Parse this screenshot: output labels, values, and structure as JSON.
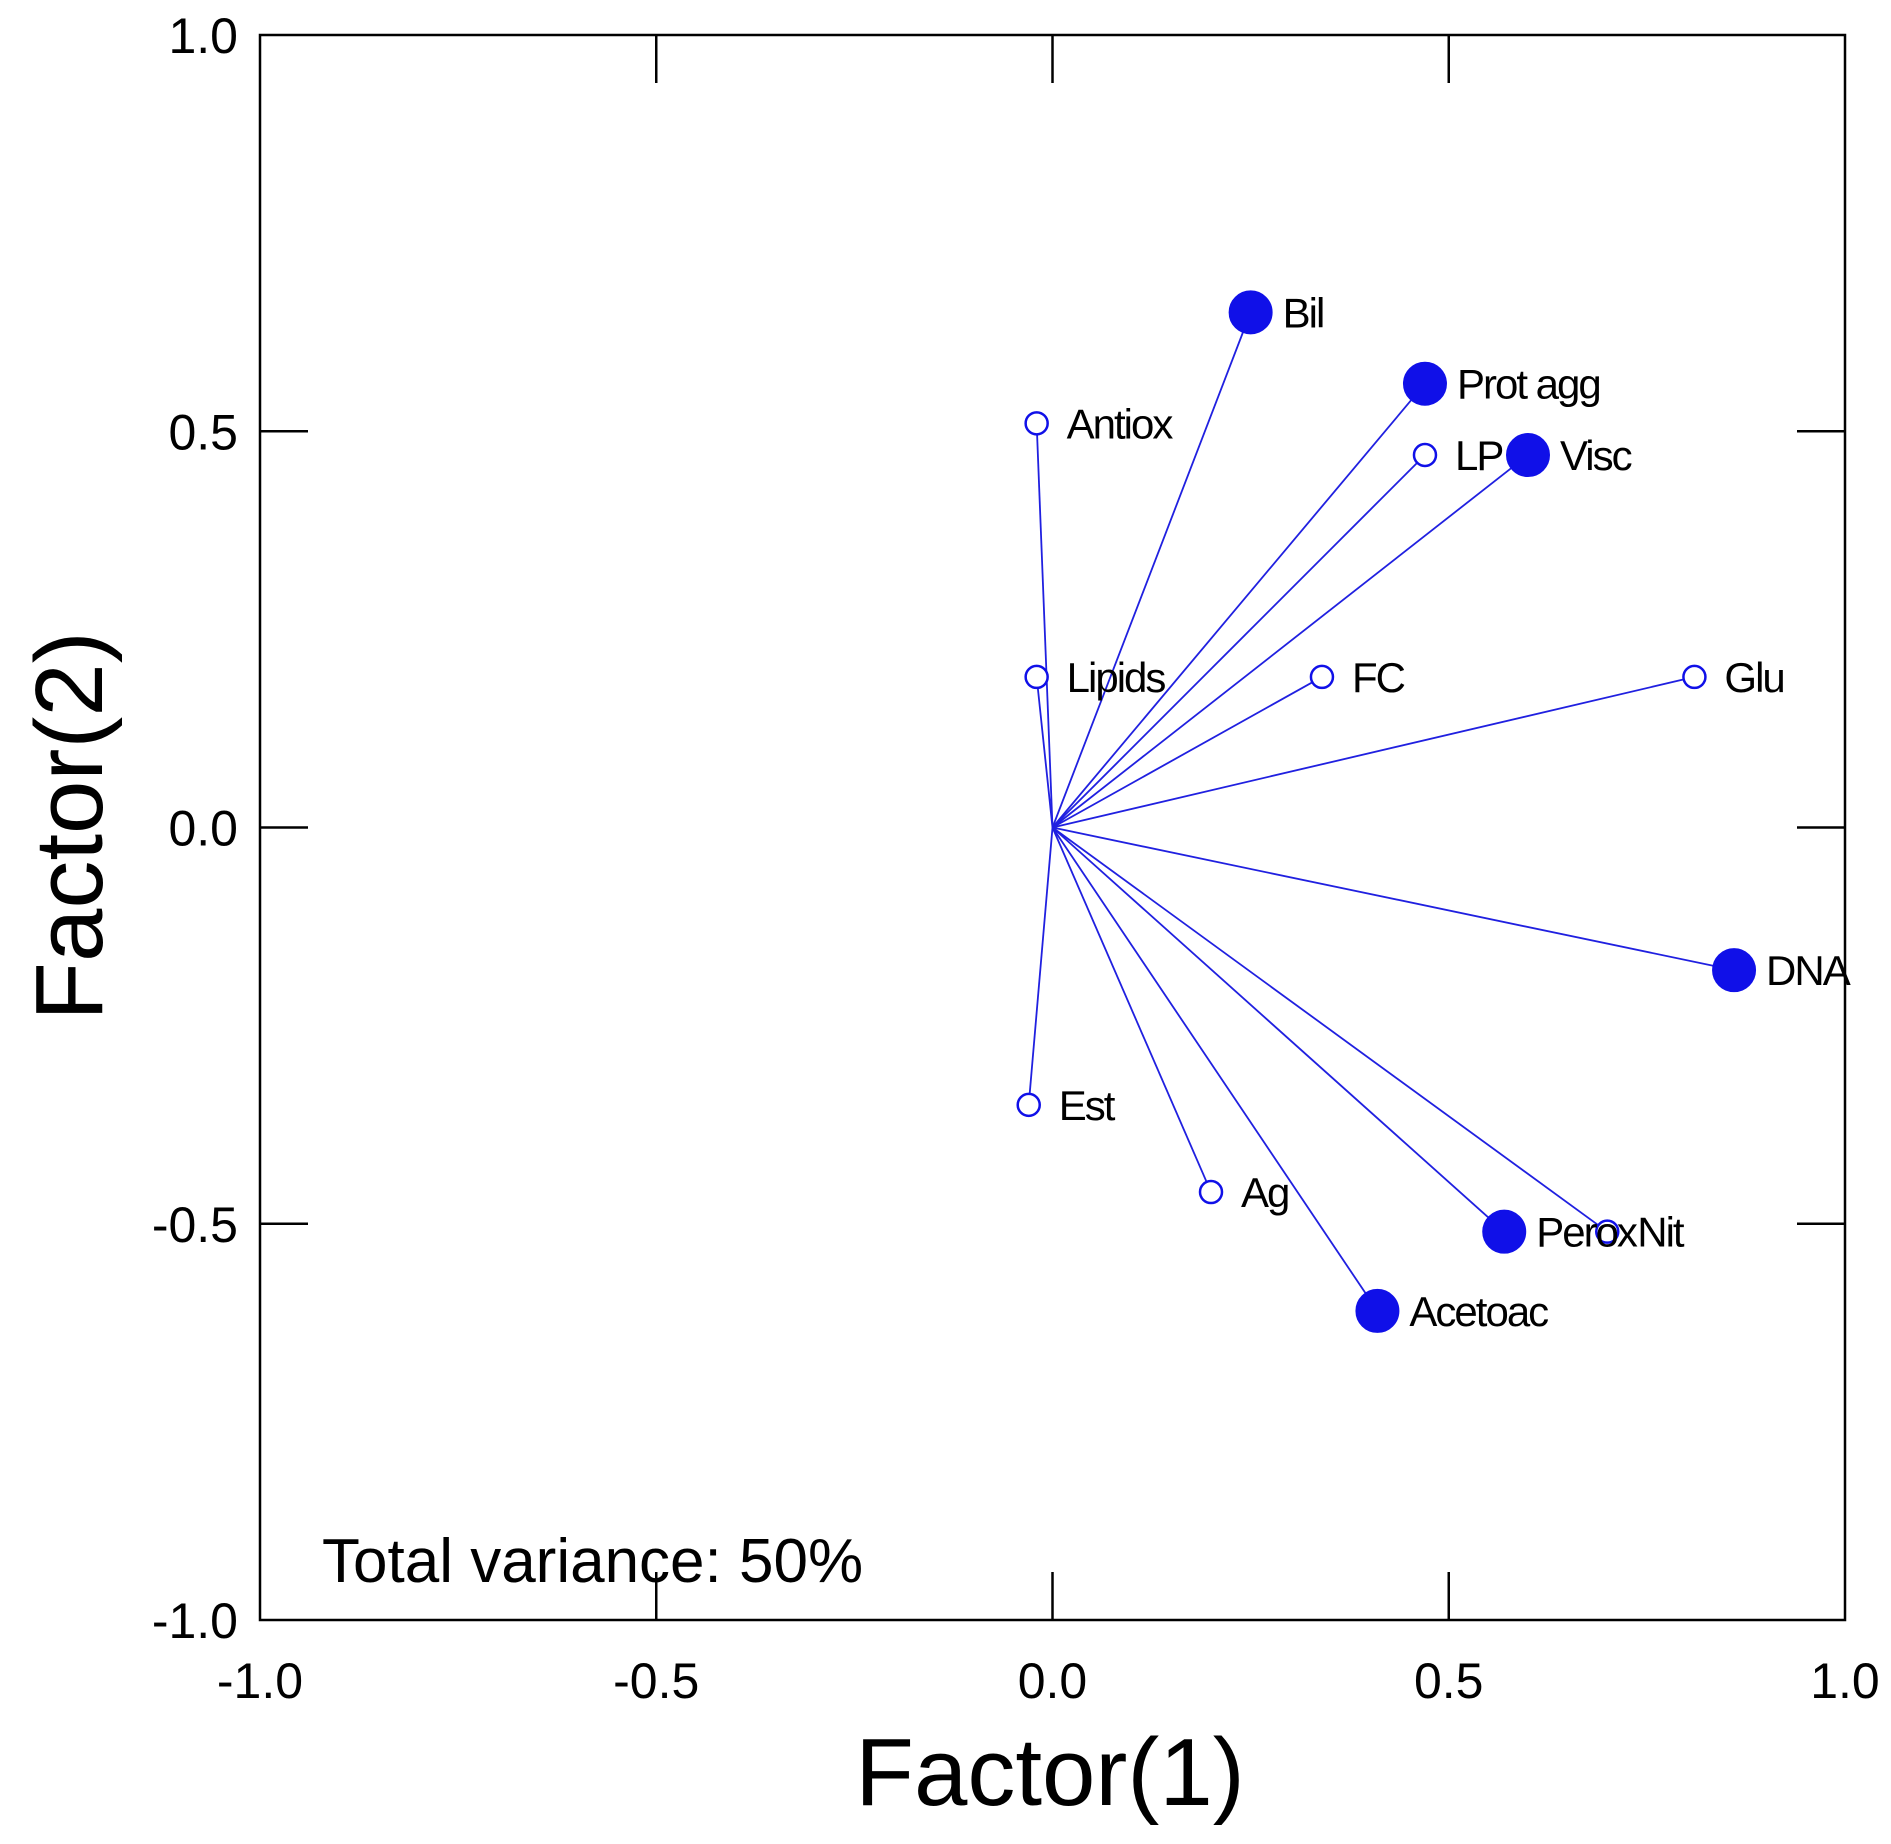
{
  "chart_data": {
    "type": "scatter",
    "subtype": "loading-vector-plot",
    "title": "",
    "xlabel": "Factor(1)",
    "ylabel": "Factor(2)",
    "xlim": [
      -1.0,
      1.0
    ],
    "ylim": [
      -1.0,
      1.0
    ],
    "xticks": [
      "-1.0",
      "-0.5",
      "0.0",
      "0.5",
      "1.0"
    ],
    "yticks": [
      "1.0",
      "0.5",
      "0.0",
      "-0.5",
      "-1.0"
    ],
    "grid": false,
    "annotation": "Total variance: 50%",
    "colors": {
      "vector": "#2020e0",
      "marker": "#1010e8",
      "axis": "#000000"
    },
    "points": [
      {
        "label": "Bil",
        "x": 0.25,
        "y": 0.65,
        "marker": "filled"
      },
      {
        "label": "Prot agg",
        "x": 0.47,
        "y": 0.56,
        "marker": "filled"
      },
      {
        "label": "Antiox",
        "x": -0.02,
        "y": 0.51,
        "marker": "open"
      },
      {
        "label": "LP",
        "x": 0.47,
        "y": 0.47,
        "marker": "open"
      },
      {
        "label": "Visc",
        "x": 0.6,
        "y": 0.47,
        "marker": "filled"
      },
      {
        "label": "Lipids",
        "x": -0.02,
        "y": 0.19,
        "marker": "open"
      },
      {
        "label": "FC",
        "x": 0.34,
        "y": 0.19,
        "marker": "open"
      },
      {
        "label": "Glu",
        "x": 0.81,
        "y": 0.19,
        "marker": "open"
      },
      {
        "label": "DNA",
        "x": 0.86,
        "y": -0.18,
        "marker": "filled"
      },
      {
        "label": "Est",
        "x": -0.03,
        "y": -0.35,
        "marker": "open"
      },
      {
        "label": "Ag",
        "x": 0.2,
        "y": -0.46,
        "marker": "open"
      },
      {
        "label": "Perox",
        "x": 0.57,
        "y": -0.51,
        "marker": "filled"
      },
      {
        "label": "Nit",
        "x": 0.7,
        "y": -0.51,
        "marker": "open"
      },
      {
        "label": "Acetoac",
        "x": 0.41,
        "y": -0.61,
        "marker": "filled"
      }
    ]
  }
}
